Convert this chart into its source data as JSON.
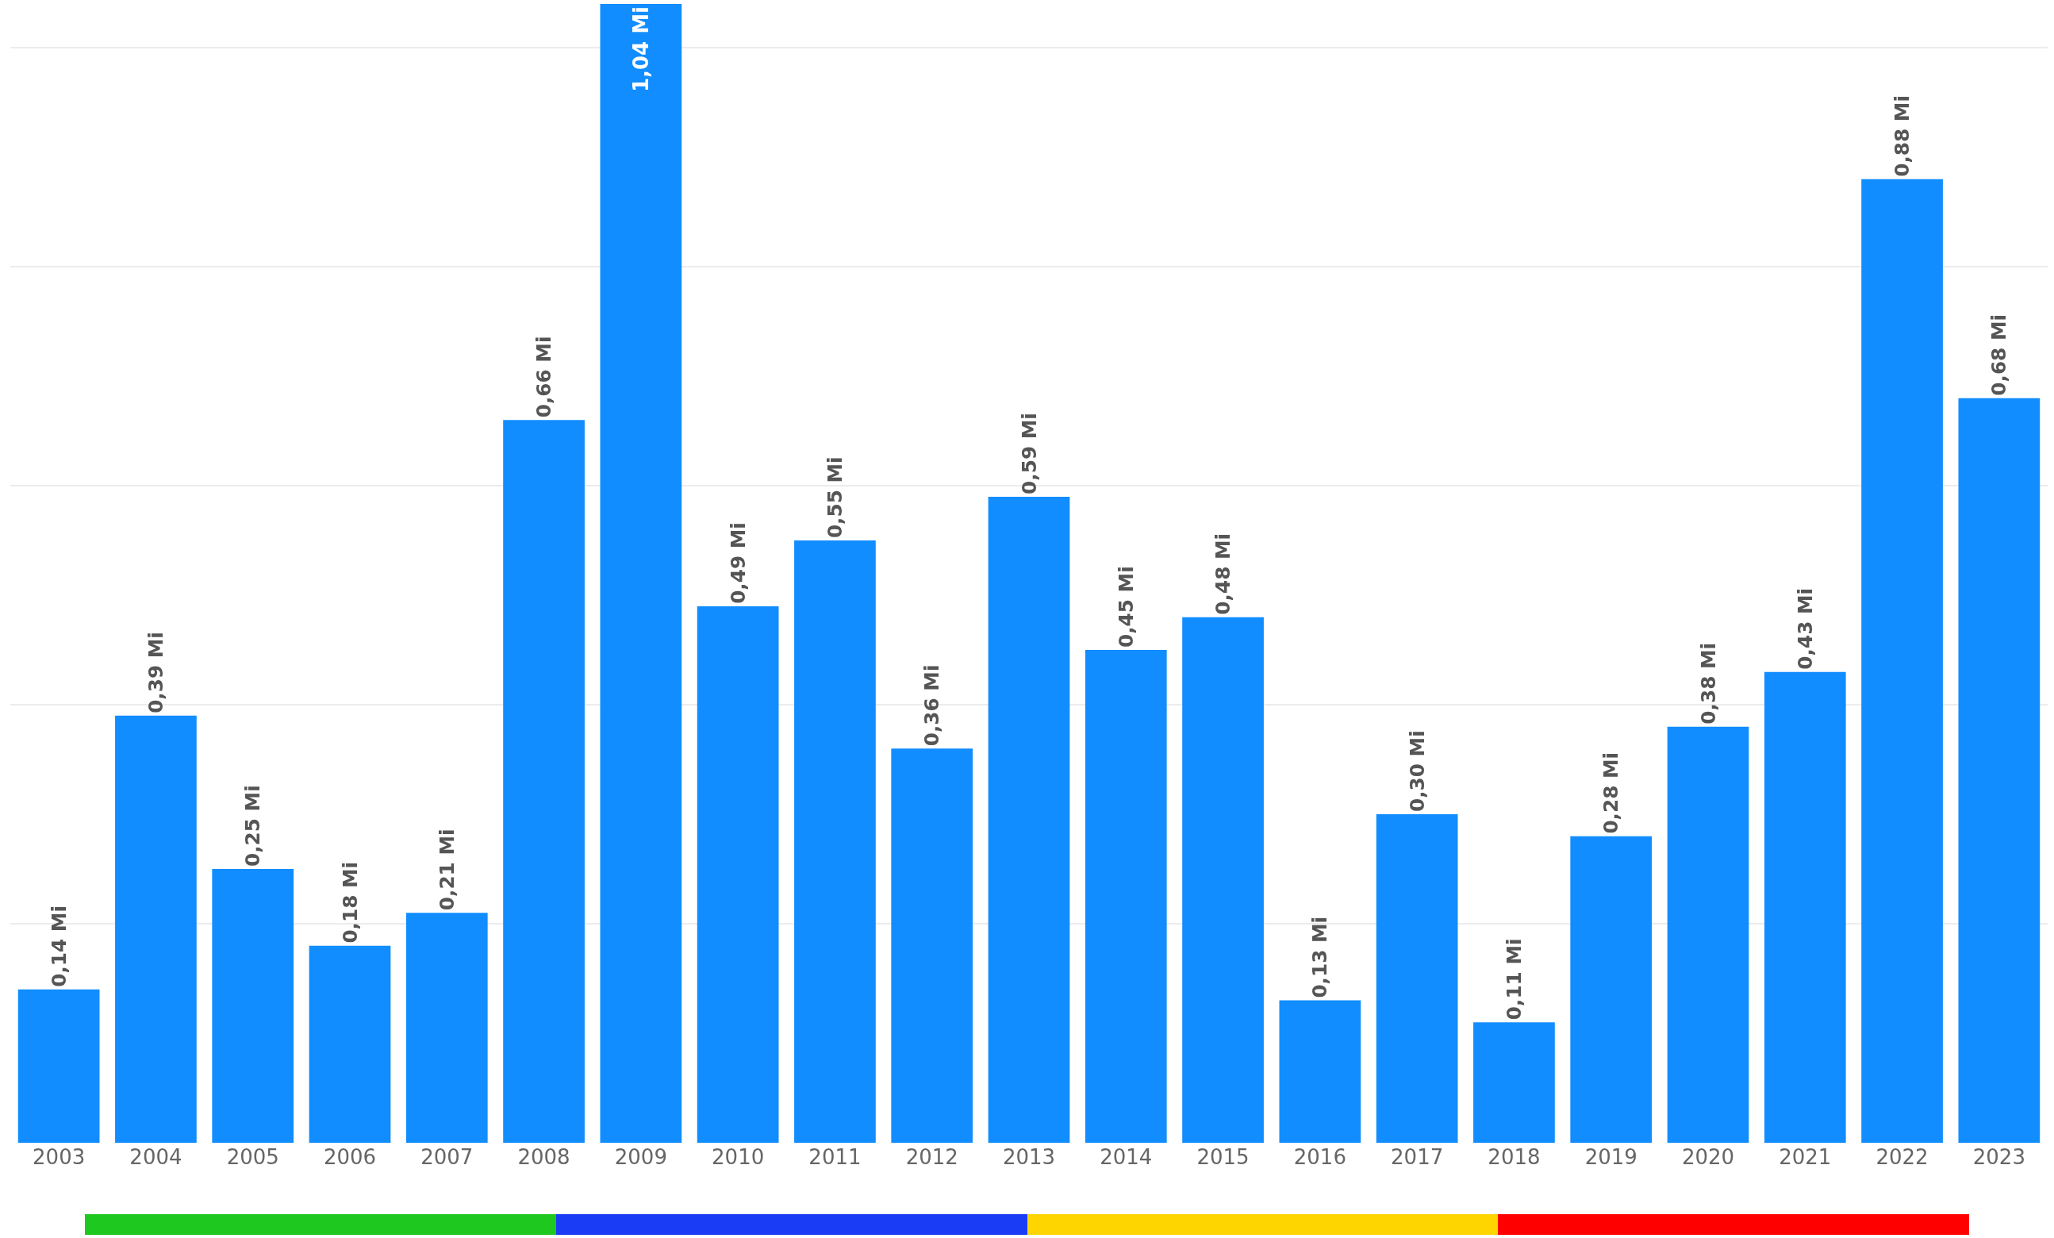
{
  "chart_data": {
    "type": "bar",
    "categories": [
      "2003",
      "2004",
      "2005",
      "2006",
      "2007",
      "2008",
      "2009",
      "2010",
      "2011",
      "2012",
      "2013",
      "2014",
      "2015",
      "2016",
      "2017",
      "2018",
      "2019",
      "2020",
      "2021",
      "2022",
      "2023"
    ],
    "values": [
      0.14,
      0.39,
      0.25,
      0.18,
      0.21,
      0.66,
      1.04,
      0.49,
      0.55,
      0.36,
      0.59,
      0.45,
      0.48,
      0.13,
      0.3,
      0.11,
      0.28,
      0.38,
      0.43,
      0.88,
      0.68
    ],
    "value_labels": [
      "0,14 Mi",
      "0,39 Mi",
      "0,25 Mi",
      "0,18 Mi",
      "0,21 Mi",
      "0,66 Mi",
      "1,04 Mi",
      "0,49 Mi",
      "0,55 Mi",
      "0,36 Mi",
      "0,59 Mi",
      "0,45 Mi",
      "0,48 Mi",
      "0,13 Mi",
      "0,30 Mi",
      "0,11 Mi",
      "0,28 Mi",
      "0,38 Mi",
      "0,43 Mi",
      "0,88 Mi",
      "0,68 Mi"
    ],
    "color": "#118dff",
    "ylim": [
      0,
      1.04
    ],
    "tick_labels": "x",
    "grid": "y"
  }
}
